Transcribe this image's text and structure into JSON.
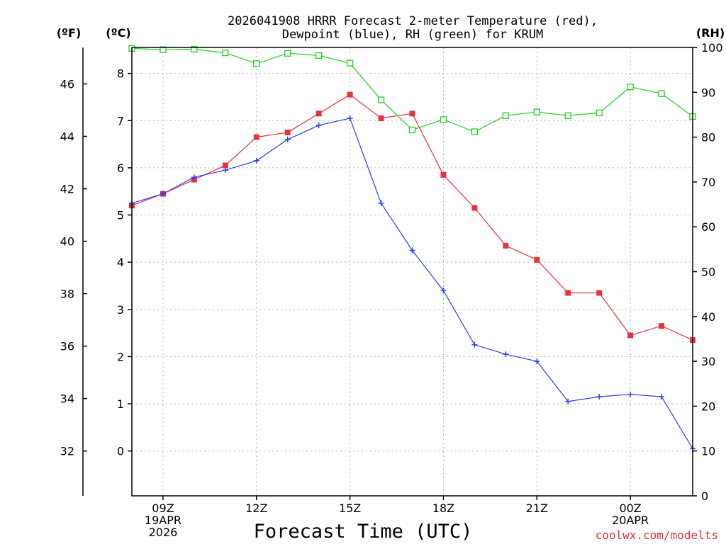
{
  "chart_data": {
    "type": "line",
    "title_lines": [
      "2026041908 HRRR Forecast 2-meter Temperature (red),",
      "Dewpoint (blue), RH (green) for KRUM"
    ],
    "xlabel": "Forecast Time (UTC)",
    "credit": "coolwx.com/modelts",
    "units": {
      "fahrenheit": "(ºF)",
      "celsius": "(ºC)",
      "rh": "(RH)"
    },
    "x_hours": [
      8,
      9,
      10,
      11,
      12,
      13,
      14,
      15,
      16,
      17,
      18,
      19,
      20,
      21,
      22,
      23,
      24,
      25,
      26
    ],
    "x_range": [
      8,
      26
    ],
    "x_ticks": [
      {
        "hour": 9,
        "lines": [
          "09Z",
          "19APR",
          "2026"
        ]
      },
      {
        "hour": 12,
        "lines": [
          "12Z"
        ]
      },
      {
        "hour": 15,
        "lines": [
          "15Z"
        ]
      },
      {
        "hour": 18,
        "lines": [
          "18Z"
        ]
      },
      {
        "hour": 21,
        "lines": [
          "21Z"
        ]
      },
      {
        "hour": 24,
        "lines": [
          "00Z",
          "20APR"
        ]
      }
    ],
    "celsius_range": [
      -0.95,
      8.55
    ],
    "celsius_ticks": [
      "0",
      "1",
      "2",
      "3",
      "4",
      "5",
      "6",
      "7",
      "8"
    ],
    "fahrenheit_ticks": [
      "32",
      "34",
      "36",
      "38",
      "40",
      "42",
      "44",
      "46"
    ],
    "rh_range": [
      0,
      100
    ],
    "rh_ticks": [
      "0",
      "10",
      "20",
      "30",
      "40",
      "50",
      "60",
      "70",
      "80",
      "90",
      "100"
    ],
    "grid": true,
    "series": [
      {
        "name": "Temperature",
        "axis": "celsius",
        "color": "#e8323c",
        "marker": "filled-square",
        "values": [
          5.2,
          5.45,
          5.75,
          6.05,
          6.65,
          6.75,
          7.15,
          7.55,
          7.05,
          7.15,
          5.85,
          5.15,
          4.35,
          4.05,
          3.35,
          3.35,
          2.45,
          2.65,
          2.35
        ]
      },
      {
        "name": "Dewpoint",
        "axis": "celsius",
        "color": "#2a3cf0",
        "marker": "plus",
        "values": [
          5.25,
          5.45,
          5.8,
          5.95,
          6.15,
          6.6,
          6.9,
          7.05,
          5.25,
          4.25,
          3.4,
          2.25,
          2.05,
          1.9,
          1.05,
          1.15,
          1.2,
          1.15,
          0.05
        ]
      },
      {
        "name": "RH",
        "axis": "rh",
        "color": "#1ecf1e",
        "marker": "open-square",
        "values": [
          99.8,
          99.5,
          99.6,
          98.8,
          96.4,
          98.7,
          98.2,
          96.5,
          88.3,
          81.6,
          83.9,
          81.2,
          84.8,
          85.6,
          84.8,
          85.4,
          91.2,
          89.7,
          84.6
        ]
      }
    ]
  }
}
